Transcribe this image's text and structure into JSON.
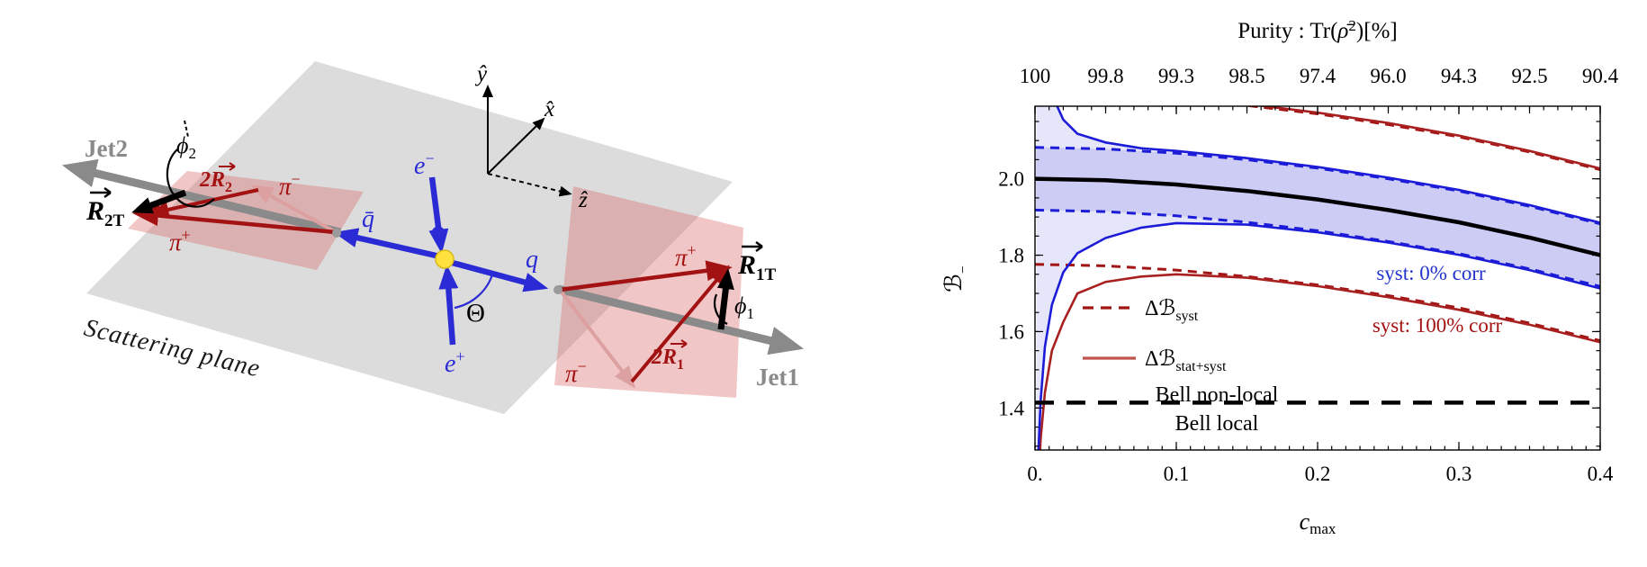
{
  "diagram": {
    "plane_label": "Scattering plane",
    "jets": {
      "jet1": "Jet1",
      "jet2": "Jet2"
    },
    "vectors": {
      "r_main": "R",
      "r1t_sub": "1T",
      "r2t_sub": "2T",
      "two_r_main": "2R",
      "two_r1_sub": "1",
      "two_r2_sub": "2"
    },
    "particles": {
      "pi": "π",
      "plus": "+",
      "minus": "−",
      "e": "e",
      "q": "q",
      "qbar": "q̄"
    },
    "angles": {
      "theta": "Θ",
      "phi": "ϕ",
      "phi1_sub": "1",
      "phi2_sub": "2"
    },
    "axes": {
      "y": "ŷ",
      "x": "x̂",
      "z": "ẑ"
    },
    "colors": {
      "plane": "#dcdcdc",
      "panel": "#d96a6a",
      "jet": "#8a8a8a",
      "lepton_quark": "#2b2bd5",
      "pion": "#a31212",
      "pion_faded": "#dca0a0",
      "vertex": "#ffe23d"
    }
  },
  "chart_data": {
    "type": "line",
    "top_axis": {
      "title_pre": "Purity :  Tr(",
      "title_rho": "ρ̄",
      "title_sup": "2",
      "title_post": ")[%]",
      "tick_labels": [
        "100",
        "99.8",
        "99.3",
        "98.5",
        "97.4",
        "96.0",
        "94.3",
        "92.5",
        "90.4"
      ],
      "tick_values": [
        0,
        0.05,
        0.1,
        0.15,
        0.2,
        0.25,
        0.3,
        0.35,
        0.4
      ]
    },
    "x_axis": {
      "label_main": "c",
      "label_sub": "max",
      "tick_labels": [
        "0.",
        "0.1",
        "0.2",
        "0.3",
        "0.4"
      ],
      "tick_values": [
        0,
        0.1,
        0.2,
        0.3,
        0.4
      ],
      "minor_step": 0.01,
      "range": [
        0,
        0.4
      ]
    },
    "y_axis": {
      "label_main": "ℬ",
      "label_sub": "−",
      "tick_labels": [
        "1.4",
        "1.6",
        "1.8",
        "2.0"
      ],
      "tick_values": [
        1.4,
        1.6,
        1.8,
        2.0
      ],
      "minor_step": 0.05,
      "range": [
        1.29,
        2.19
      ]
    },
    "bell_line": {
      "value": 1.414,
      "label_above": "Bell non-local",
      "label_below": "Bell local"
    },
    "annotations": [
      {
        "text": "syst: 0% corr",
        "color": "#2233cc"
      },
      {
        "text": "syst: 100% corr",
        "color": "#a31212"
      }
    ],
    "legend": [
      {
        "label_main": "Δℬ",
        "label_sub": "syst",
        "style": "dashed",
        "color": "#a31515"
      },
      {
        "label_main": "Δℬ",
        "label_sub": "stat+syst",
        "style": "solid",
        "color": "#c05550"
      }
    ],
    "bands": [
      {
        "name": "stat-syst-0corr",
        "upper": "blue_solid_up",
        "lower": "blue_solid_dn",
        "fill": "rgba(100,100,225,0.16)"
      },
      {
        "name": "syst-0corr",
        "upper": "blue_dashed_up",
        "lower": "blue_dashed_dn",
        "fill": "rgba(100,100,225,0.20)"
      }
    ],
    "series": [
      {
        "name": "red_dashed_up",
        "color": "#a31515",
        "width": 3,
        "dash": "10 7",
        "x": [
          0,
          0.05,
          0.1,
          0.15,
          0.2,
          0.25,
          0.3,
          0.35,
          0.4
        ],
        "y": [
          2.224,
          2.22,
          2.209,
          2.192,
          2.17,
          2.142,
          2.11,
          2.07,
          2.024
        ]
      },
      {
        "name": "red_dashed_dn",
        "color": "#a31515",
        "width": 3,
        "dash": "10 7",
        "x": [
          0,
          0.05,
          0.1,
          0.15,
          0.2,
          0.25,
          0.3,
          0.35,
          0.4
        ],
        "y": [
          1.776,
          1.772,
          1.761,
          1.744,
          1.722,
          1.694,
          1.662,
          1.622,
          1.576
        ]
      },
      {
        "name": "red_solid_up",
        "color": "#a82020",
        "width": 2.6,
        "dash": "",
        "x": [
          0.001,
          0.002,
          0.004,
          0.007,
          0.012,
          0.02,
          0.03,
          0.05,
          0.075,
          0.1,
          0.15,
          0.2,
          0.25,
          0.3,
          0.35,
          0.4
        ],
        "y": [
          2.9,
          2.75,
          2.6,
          2.5,
          2.42,
          2.36,
          2.32,
          2.28,
          2.26,
          2.235,
          2.196,
          2.173,
          2.146,
          2.113,
          2.073,
          2.027
        ]
      },
      {
        "name": "red_solid_dn",
        "color": "#a82020",
        "width": 2.6,
        "dash": "",
        "x": [
          0.001,
          0.002,
          0.004,
          0.007,
          0.012,
          0.02,
          0.03,
          0.05,
          0.075,
          0.1,
          0.15,
          0.2,
          0.25,
          0.3,
          0.35,
          0.4
        ],
        "y": [
          1.05,
          1.17,
          1.32,
          1.44,
          1.55,
          1.625,
          1.7,
          1.73,
          1.744,
          1.75,
          1.741,
          1.719,
          1.69,
          1.657,
          1.618,
          1.572
        ]
      },
      {
        "name": "blue_dashed_up",
        "color": "#1c1cd8",
        "width": 3,
        "dash": "10 7",
        "x": [
          0,
          0.05,
          0.1,
          0.15,
          0.2,
          0.25,
          0.3,
          0.35,
          0.4
        ],
        "y": [
          2.082,
          2.078,
          2.067,
          2.05,
          2.028,
          2.0,
          1.968,
          1.928,
          1.882
        ]
      },
      {
        "name": "blue_dashed_dn",
        "color": "#1c1cd8",
        "width": 3,
        "dash": "10 7",
        "x": [
          0,
          0.05,
          0.1,
          0.15,
          0.2,
          0.25,
          0.3,
          0.35,
          0.4
        ],
        "y": [
          1.918,
          1.914,
          1.903,
          1.886,
          1.864,
          1.836,
          1.804,
          1.764,
          1.718
        ]
      },
      {
        "name": "blue_solid_up",
        "color": "#1c1cd8",
        "width": 2.6,
        "dash": "",
        "x": [
          0.001,
          0.002,
          0.004,
          0.007,
          0.012,
          0.02,
          0.03,
          0.05,
          0.075,
          0.1,
          0.15,
          0.2,
          0.25,
          0.3,
          0.35,
          0.4
        ],
        "y": [
          2.75,
          2.55,
          2.4,
          2.3,
          2.22,
          2.155,
          2.118,
          2.095,
          2.08,
          2.073,
          2.054,
          2.031,
          2.003,
          1.971,
          1.931,
          1.885
        ]
      },
      {
        "name": "blue_solid_dn",
        "color": "#1c1cd8",
        "width": 2.6,
        "dash": "",
        "x": [
          0.001,
          0.002,
          0.004,
          0.007,
          0.012,
          0.02,
          0.03,
          0.05,
          0.075,
          0.1,
          0.15,
          0.2,
          0.25,
          0.3,
          0.35,
          0.4
        ],
        "y": [
          1.1,
          1.25,
          1.42,
          1.56,
          1.67,
          1.755,
          1.805,
          1.845,
          1.872,
          1.884,
          1.88,
          1.86,
          1.833,
          1.801,
          1.761,
          1.713
        ]
      },
      {
        "name": "central",
        "color": "#000000",
        "width": 4.5,
        "dash": "",
        "x": [
          0,
          0.05,
          0.1,
          0.15,
          0.2,
          0.25,
          0.3,
          0.35,
          0.4
        ],
        "y": [
          2.0,
          1.996,
          1.985,
          1.968,
          1.946,
          1.918,
          1.886,
          1.846,
          1.8
        ]
      }
    ]
  }
}
